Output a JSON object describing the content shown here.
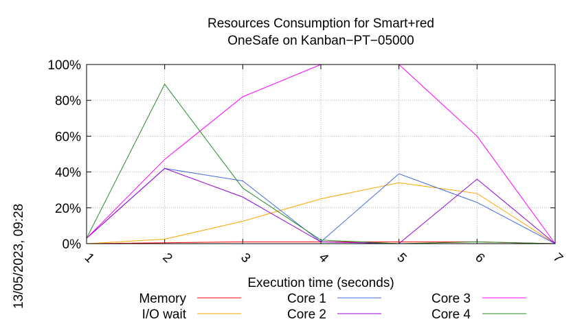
{
  "chart_data": {
    "type": "line",
    "title_lines": [
      "Resources Consumption for Smart+red",
      "OneSafe on Kanban−PT−05000"
    ],
    "xlabel": "Execution time (seconds)",
    "ylabel": "",
    "xlim": [
      1,
      7
    ],
    "ylim": [
      0,
      100
    ],
    "x_ticks": [
      "1",
      "2",
      "3",
      "4",
      "5",
      "6",
      "7"
    ],
    "y_ticks": [
      "0%",
      "20%",
      "40%",
      "60%",
      "80%",
      "100%"
    ],
    "grid": true,
    "legend_position": "bottom",
    "x": [
      1,
      2,
      3,
      4,
      5,
      6,
      7
    ],
    "series": [
      {
        "name": "Memory",
        "color": "#ff0000",
        "values": [
          0,
          0.5,
          1,
          1,
          1,
          1,
          0
        ]
      },
      {
        "name": "I/O wait",
        "color": "#ffa500",
        "values": [
          0,
          2.5,
          12.5,
          25,
          34,
          28,
          0
        ]
      },
      {
        "name": "Core 1",
        "color": "#4169e1",
        "values": [
          3,
          42,
          35,
          1,
          39,
          23,
          0
        ]
      },
      {
        "name": "Core 2",
        "color": "#9400d3",
        "values": [
          3,
          42,
          26,
          1,
          0,
          36,
          0
        ]
      },
      {
        "name": "Core 3",
        "color": "#ff00ff",
        "values": [
          3,
          47,
          82,
          100,
          100,
          60,
          0
        ]
      },
      {
        "name": "Core 4",
        "color": "#228b22",
        "values": [
          3,
          89,
          31,
          2,
          0,
          1,
          0
        ]
      }
    ]
  },
  "timestamp": "13/05/2023, 09:28"
}
